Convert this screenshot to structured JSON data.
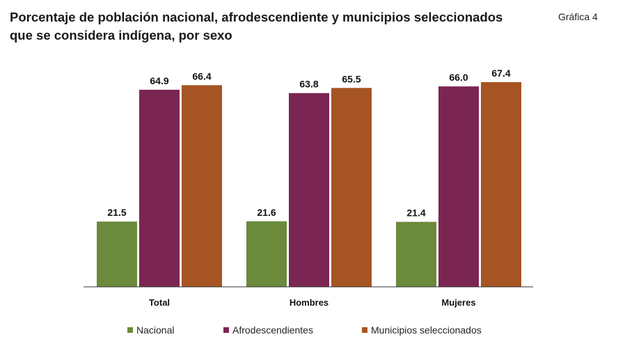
{
  "title_lines": [
    "Porcentaje de población nacional, afrodescendiente y municipios seleccionados",
    "que se considera indígena, por sexo"
  ],
  "badge": "Gráfica 4",
  "chart_data": {
    "type": "bar",
    "title": "Porcentaje de población nacional, afrodescendiente y municipios seleccionados que se considera indígena, por sexo",
    "xlabel": "",
    "ylabel": "",
    "ylim": [
      0,
      70
    ],
    "grid": false,
    "legend_placement": "bottom",
    "categories": [
      "Total",
      "Hombres",
      "Mujeres"
    ],
    "series": [
      {
        "name": "Nacional",
        "color": "#6b8a3b",
        "values": [
          21.5,
          21.6,
          21.4
        ],
        "labels": [
          "21.5",
          "21.6",
          "21.4"
        ]
      },
      {
        "name": "Afrodescendientes",
        "color": "#7b2652",
        "values": [
          64.9,
          63.8,
          66.0
        ],
        "labels": [
          "64.9",
          "63.8",
          "66.0"
        ]
      },
      {
        "name": "Municipios seleccionados",
        "color": "#a65423",
        "values": [
          66.4,
          65.5,
          67.4
        ],
        "labels": [
          "66.4",
          "65.5",
          "67.4"
        ]
      }
    ]
  }
}
